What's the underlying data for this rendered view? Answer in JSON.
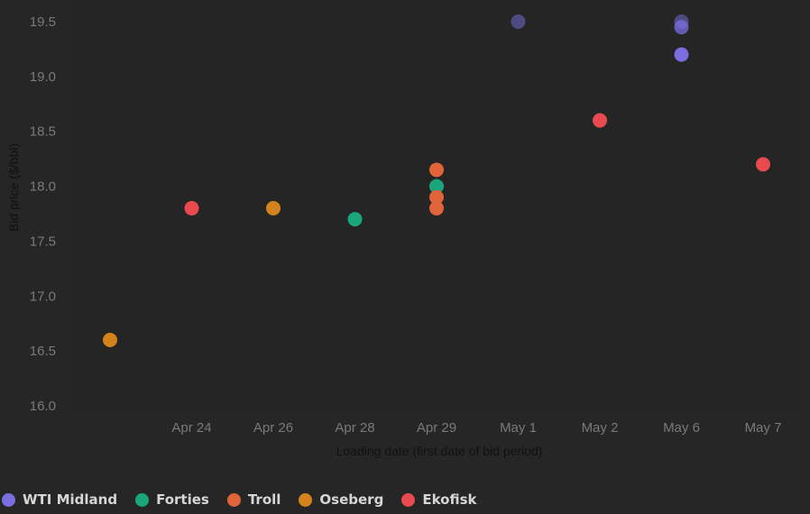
{
  "chart_data": {
    "type": "scatter",
    "xlabel": "Loading date (first date of bid period)",
    "ylabel": "Bid price ($/bbl)",
    "categories": [
      "",
      "Apr 24",
      "Apr 26",
      "Apr 28",
      "Apr 29",
      "May 1",
      "May 2",
      "May 6",
      "May 7"
    ],
    "ylim": [
      16.0,
      19.5
    ],
    "yticks": [
      "16.0",
      "16.5",
      "17.0",
      "17.5",
      "18.0",
      "18.5",
      "19.0",
      "19.5"
    ],
    "grid": false,
    "legend_position": "bottom-left",
    "series": [
      {
        "name": "WTI Midland",
        "color": "#7b6fe0",
        "points": [
          {
            "x": "May 1",
            "y": 19.5,
            "opacity": 0.5
          },
          {
            "x": "May 6",
            "y": 19.5,
            "opacity": 0.5
          },
          {
            "x": "May 6",
            "y": 19.45,
            "opacity": 0.75
          },
          {
            "x": "May 6",
            "y": 19.2,
            "opacity": 1
          }
        ]
      },
      {
        "name": "Forties",
        "color": "#1aa57a",
        "points": [
          {
            "x": "Apr 28",
            "y": 17.7,
            "opacity": 1
          },
          {
            "x": "Apr 29",
            "y": 18.0,
            "opacity": 1
          }
        ]
      },
      {
        "name": "Troll",
        "color": "#e0633a",
        "points": [
          {
            "x": "Apr 29",
            "y": 18.15,
            "opacity": 1
          },
          {
            "x": "Apr 29",
            "y": 17.9,
            "opacity": 1
          },
          {
            "x": "Apr 29",
            "y": 17.8,
            "opacity": 1
          }
        ]
      },
      {
        "name": "Oseberg",
        "color": "#d4821c",
        "points": [
          {
            "x": "",
            "y": 16.6,
            "opacity": 1
          },
          {
            "x": "Apr 26",
            "y": 17.8,
            "opacity": 1
          }
        ]
      },
      {
        "name": "Ekofisk",
        "color": "#e84a4f",
        "points": [
          {
            "x": "Apr 24",
            "y": 17.8,
            "opacity": 1
          },
          {
            "x": "May 2",
            "y": 18.6,
            "opacity": 1
          },
          {
            "x": "May 7",
            "y": 18.2,
            "opacity": 1
          }
        ]
      }
    ]
  }
}
